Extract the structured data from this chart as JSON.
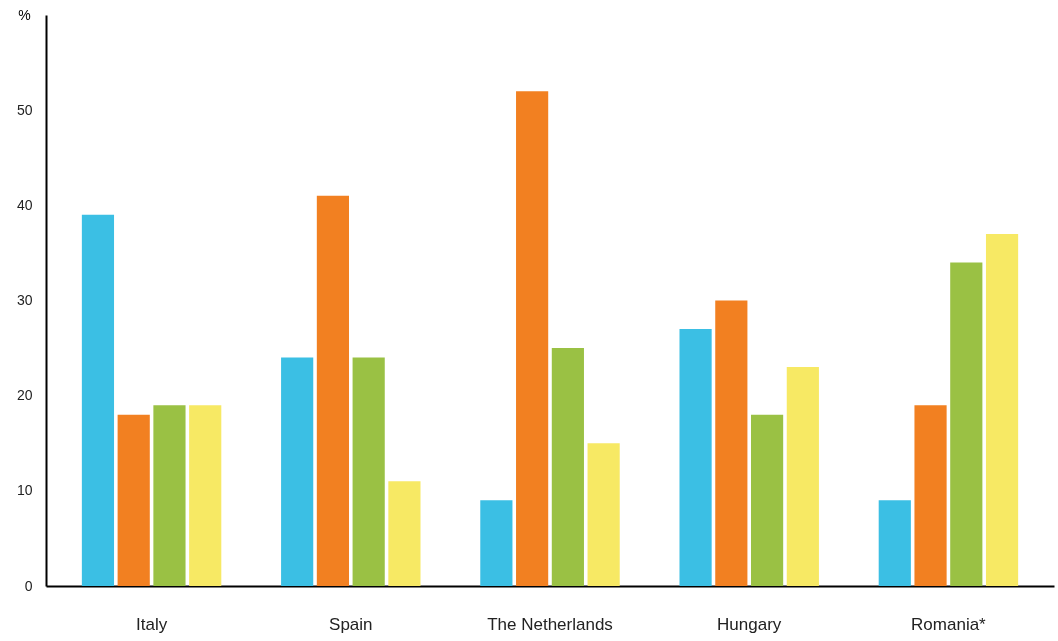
{
  "chart_data": {
    "type": "bar",
    "ylabel": "%",
    "categories": [
      "Italy",
      "Spain",
      "The Netherlands",
      "Hungary",
      "Romania*"
    ],
    "series": [
      {
        "color": "#3bbfe4",
        "values": [
          39,
          24,
          9,
          27,
          9
        ]
      },
      {
        "color": "#f28021",
        "values": [
          18,
          41,
          52,
          30,
          19
        ]
      },
      {
        "color": "#9ac144",
        "values": [
          19,
          24,
          25,
          18,
          34
        ]
      },
      {
        "color": "#f7e964",
        "values": [
          19,
          11,
          15,
          23,
          37
        ]
      }
    ],
    "ylim": [
      0,
      60
    ],
    "yticks": [
      0,
      10,
      20,
      30,
      40,
      50
    ],
    "grid": false
  }
}
